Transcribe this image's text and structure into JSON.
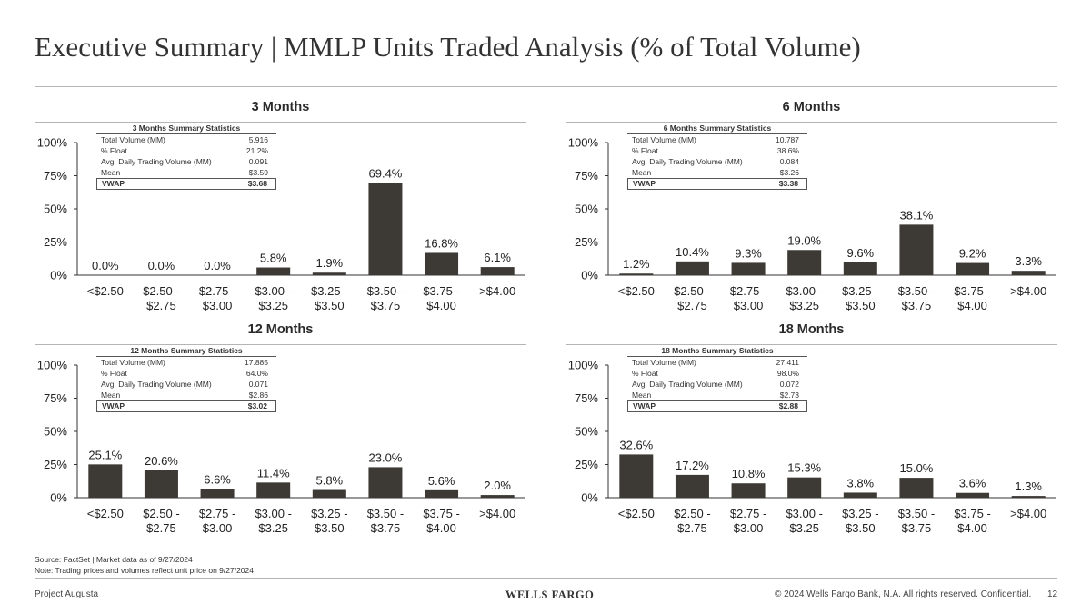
{
  "title": "Executive Summary | MMLP Units Traded Analysis (% of Total Volume)",
  "footnotes": {
    "source": "Source: FactSet | Market data as of 9/27/2024",
    "note": "Note: Trading prices and volumes reflect unit price on 9/27/2024"
  },
  "footer": {
    "project": "Project Augusta",
    "logo": "WELLS FARGO",
    "copyright": "© 2024 Wells Fargo Bank, N.A. All rights reserved. Confidential.",
    "page": "12"
  },
  "colors": {
    "bar": "#3d3935",
    "rule": "#b5b5b5",
    "text": "#222222"
  },
  "stats": [
    {
      "title": "3 Months Summary Statistics",
      "rows": [
        {
          "label": "Total Volume (MM)",
          "value": "5.916"
        },
        {
          "label": "% Float",
          "value": "21.2%"
        },
        {
          "label": "Avg. Daily Trading Volume (MM)",
          "value": "0.091"
        },
        {
          "label": "Mean",
          "value": "$3.59"
        }
      ],
      "vwap": {
        "label": "VWAP",
        "value": "$3.68"
      }
    },
    {
      "title": "6 Months Summary Statistics",
      "rows": [
        {
          "label": "Total Volume (MM)",
          "value": "10.787"
        },
        {
          "label": "% Float",
          "value": "38.6%"
        },
        {
          "label": "Avg. Daily Trading Volume (MM)",
          "value": "0.084"
        },
        {
          "label": "Mean",
          "value": "$3.26"
        }
      ],
      "vwap": {
        "label": "VWAP",
        "value": "$3.38"
      }
    },
    {
      "title": "12 Months Summary Statistics",
      "rows": [
        {
          "label": "Total Volume (MM)",
          "value": "17.885"
        },
        {
          "label": "% Float",
          "value": "64.0%"
        },
        {
          "label": "Avg. Daily Trading Volume (MM)",
          "value": "0.071"
        },
        {
          "label": "Mean",
          "value": "$2.86"
        }
      ],
      "vwap": {
        "label": "VWAP",
        "value": "$3.02"
      }
    },
    {
      "title": "18 Months Summary Statistics",
      "rows": [
        {
          "label": "Total Volume (MM)",
          "value": "27.411"
        },
        {
          "label": "% Float",
          "value": "98.0%"
        },
        {
          "label": "Avg. Daily Trading Volume (MM)",
          "value": "0.072"
        },
        {
          "label": "Mean",
          "value": "$2.73"
        }
      ],
      "vwap": {
        "label": "VWAP",
        "value": "$2.88"
      }
    }
  ],
  "chart_data": [
    {
      "type": "bar",
      "title": "3 Months",
      "categories": [
        [
          "<$2.50"
        ],
        [
          "$2.50 -",
          "$2.75"
        ],
        [
          "$2.75 -",
          "$3.00"
        ],
        [
          "$3.00 -",
          "$3.25"
        ],
        [
          "$3.25 -",
          "$3.50"
        ],
        [
          "$3.50 -",
          "$3.75"
        ],
        [
          "$3.75 -",
          "$4.00"
        ],
        [
          ">$4.00"
        ]
      ],
      "values": [
        0.0,
        0.0,
        0.0,
        5.8,
        1.9,
        69.4,
        16.8,
        6.1
      ],
      "labels": [
        "0.0%",
        "0.0%",
        "0.0%",
        "5.8%",
        "1.9%",
        "69.4%",
        "16.8%",
        "6.1%"
      ],
      "yticks": [
        "0%",
        "25%",
        "50%",
        "75%",
        "100%"
      ],
      "ylim": [
        0,
        100
      ]
    },
    {
      "type": "bar",
      "title": "6 Months",
      "categories": [
        [
          "<$2.50"
        ],
        [
          "$2.50 -",
          "$2.75"
        ],
        [
          "$2.75 -",
          "$3.00"
        ],
        [
          "$3.00 -",
          "$3.25"
        ],
        [
          "$3.25 -",
          "$3.50"
        ],
        [
          "$3.50 -",
          "$3.75"
        ],
        [
          "$3.75 -",
          "$4.00"
        ],
        [
          ">$4.00"
        ]
      ],
      "values": [
        1.2,
        10.4,
        9.3,
        19.0,
        9.6,
        38.1,
        9.2,
        3.3
      ],
      "labels": [
        "1.2%",
        "10.4%",
        "9.3%",
        "19.0%",
        "9.6%",
        "38.1%",
        "9.2%",
        "3.3%"
      ],
      "yticks": [
        "0%",
        "25%",
        "50%",
        "75%",
        "100%"
      ],
      "ylim": [
        0,
        100
      ]
    },
    {
      "type": "bar",
      "title": "12 Months",
      "categories": [
        [
          "<$2.50"
        ],
        [
          "$2.50 -",
          "$2.75"
        ],
        [
          "$2.75 -",
          "$3.00"
        ],
        [
          "$3.00 -",
          "$3.25"
        ],
        [
          "$3.25 -",
          "$3.50"
        ],
        [
          "$3.50 -",
          "$3.75"
        ],
        [
          "$3.75 -",
          "$4.00"
        ],
        [
          ">$4.00"
        ]
      ],
      "values": [
        25.1,
        20.6,
        6.6,
        11.4,
        5.8,
        23.0,
        5.6,
        2.0
      ],
      "labels": [
        "25.1%",
        "20.6%",
        "6.6%",
        "11.4%",
        "5.8%",
        "23.0%",
        "5.6%",
        "2.0%"
      ],
      "yticks": [
        "0%",
        "25%",
        "50%",
        "75%",
        "100%"
      ],
      "ylim": [
        0,
        100
      ]
    },
    {
      "type": "bar",
      "title": "18 Months",
      "categories": [
        [
          "<$2.50"
        ],
        [
          "$2.50 -",
          "$2.75"
        ],
        [
          "$2.75 -",
          "$3.00"
        ],
        [
          "$3.00 -",
          "$3.25"
        ],
        [
          "$3.25 -",
          "$3.50"
        ],
        [
          "$3.50 -",
          "$3.75"
        ],
        [
          "$3.75 -",
          "$4.00"
        ],
        [
          ">$4.00"
        ]
      ],
      "values": [
        32.6,
        17.2,
        10.8,
        15.3,
        3.8,
        15.0,
        3.6,
        1.3
      ],
      "labels": [
        "32.6%",
        "17.2%",
        "10.8%",
        "15.3%",
        "3.8%",
        "15.0%",
        "3.6%",
        "1.3%"
      ],
      "yticks": [
        "0%",
        "25%",
        "50%",
        "75%",
        "100%"
      ],
      "ylim": [
        0,
        100
      ]
    }
  ]
}
